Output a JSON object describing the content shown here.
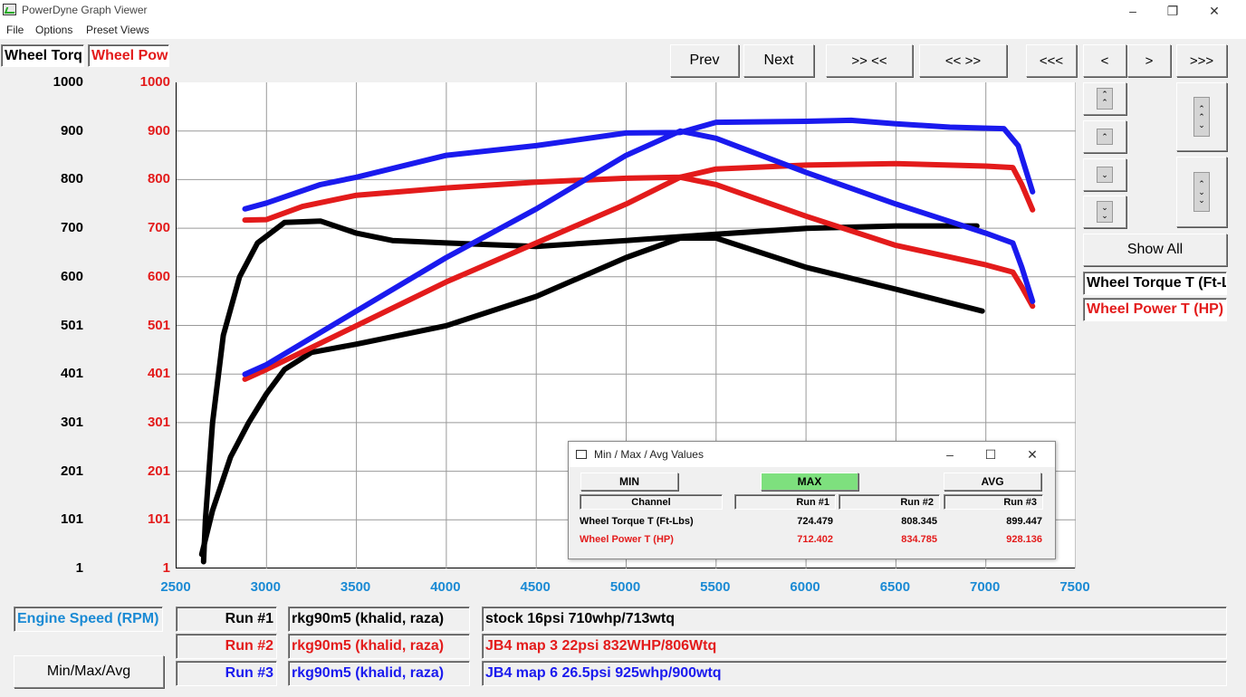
{
  "window": {
    "title": "PowerDyne Graph Viewer",
    "minimize": "–",
    "restore": "❐",
    "close": "✕"
  },
  "menu": [
    "File",
    "Options",
    "Preset Views"
  ],
  "channel_tabs": [
    {
      "label": "Wheel Torq",
      "color": "#000000"
    },
    {
      "label": "Wheel Pow",
      "color": "#e31b1b"
    }
  ],
  "toolbar": {
    "prev": "Prev",
    "next": "Next",
    "zoom_in": ">> <<",
    "zoom_out": "<< >>",
    "first": "<<<",
    "back": "<",
    "forward": ">",
    "last": ">>>"
  },
  "side": {
    "show_all": "Show All",
    "legend": [
      {
        "label": "Wheel Torque T (Ft-L",
        "color": "#000000"
      },
      {
        "label": "Wheel Power T (HP)",
        "color": "#e31b1b"
      }
    ]
  },
  "icons": {
    "up2": "double-up-icon",
    "up1": "up-icon",
    "down1": "down-icon",
    "down2": "double-down-icon"
  },
  "chart_data": {
    "type": "line",
    "xlim": [
      2500,
      7500
    ],
    "ylim": [
      1,
      1000
    ],
    "x_ticks": [
      "2500",
      "3000",
      "3500",
      "4000",
      "4500",
      "5000",
      "5500",
      "6000",
      "6500",
      "7000",
      "7500"
    ],
    "y_ticks_left": [
      "1000",
      "900",
      "800",
      "700",
      "600",
      "501",
      "401",
      "301",
      "201",
      "101",
      "1"
    ],
    "y_ticks_right": [
      "1000",
      "900",
      "800",
      "700",
      "600",
      "501",
      "401",
      "301",
      "201",
      "101",
      "1"
    ],
    "grid": true,
    "series": [
      {
        "color": "#000000",
        "points": [
          [
            2650,
            15
          ],
          [
            2660,
            100
          ],
          [
            2700,
            300
          ],
          [
            2760,
            480
          ],
          [
            2850,
            600
          ],
          [
            2950,
            670
          ],
          [
            3100,
            712
          ],
          [
            3300,
            715
          ],
          [
            3500,
            690
          ],
          [
            3700,
            675
          ],
          [
            4000,
            670
          ],
          [
            4500,
            663
          ],
          [
            5000,
            675
          ],
          [
            5500,
            688
          ],
          [
            6000,
            700
          ],
          [
            6500,
            705
          ],
          [
            6950,
            705
          ]
        ]
      },
      {
        "color": "#000000",
        "points": [
          [
            2640,
            30
          ],
          [
            2700,
            120
          ],
          [
            2800,
            230
          ],
          [
            2900,
            300
          ],
          [
            3000,
            360
          ],
          [
            3100,
            410
          ],
          [
            3250,
            445
          ],
          [
            3500,
            462
          ],
          [
            4000,
            500
          ],
          [
            4500,
            560
          ],
          [
            5000,
            640
          ],
          [
            5300,
            680
          ],
          [
            5500,
            680
          ],
          [
            6000,
            620
          ],
          [
            6500,
            575
          ],
          [
            6980,
            530
          ]
        ]
      },
      {
        "color": "#e31b1b",
        "points": [
          [
            2880,
            717
          ],
          [
            3000,
            718
          ],
          [
            3200,
            745
          ],
          [
            3500,
            768
          ],
          [
            4000,
            783
          ],
          [
            4500,
            795
          ],
          [
            5000,
            803
          ],
          [
            5300,
            805
          ],
          [
            5500,
            822
          ],
          [
            6000,
            830
          ],
          [
            6500,
            833
          ],
          [
            7000,
            828
          ],
          [
            7150,
            825
          ],
          [
            7200,
            790
          ],
          [
            7260,
            738
          ]
        ]
      },
      {
        "color": "#e31b1b",
        "points": [
          [
            2880,
            390
          ],
          [
            3000,
            410
          ],
          [
            3500,
            500
          ],
          [
            4000,
            590
          ],
          [
            4500,
            670
          ],
          [
            5000,
            750
          ],
          [
            5300,
            805
          ],
          [
            5500,
            790
          ],
          [
            6000,
            725
          ],
          [
            6500,
            665
          ],
          [
            7000,
            625
          ],
          [
            7150,
            610
          ],
          [
            7200,
            580
          ],
          [
            7260,
            540
          ]
        ]
      },
      {
        "color": "#1a1aee",
        "points": [
          [
            2880,
            740
          ],
          [
            3000,
            752
          ],
          [
            3300,
            790
          ],
          [
            3500,
            805
          ],
          [
            4000,
            850
          ],
          [
            4500,
            870
          ],
          [
            5000,
            896
          ],
          [
            5300,
            897
          ],
          [
            5500,
            918
          ],
          [
            6000,
            920
          ],
          [
            6250,
            922
          ],
          [
            6500,
            915
          ],
          [
            6800,
            908
          ],
          [
            7100,
            905
          ],
          [
            7180,
            870
          ],
          [
            7260,
            775
          ]
        ]
      },
      {
        "color": "#1a1aee",
        "points": [
          [
            2880,
            400
          ],
          [
            3000,
            420
          ],
          [
            3500,
            530
          ],
          [
            4000,
            640
          ],
          [
            4500,
            740
          ],
          [
            5000,
            850
          ],
          [
            5300,
            900
          ],
          [
            5500,
            885
          ],
          [
            6000,
            815
          ],
          [
            6500,
            750
          ],
          [
            7000,
            690
          ],
          [
            7150,
            670
          ],
          [
            7200,
            620
          ],
          [
            7260,
            550
          ]
        ]
      }
    ]
  },
  "popup": {
    "title": "Min / Max / Avg Values",
    "buttons": {
      "min": "MIN",
      "max": "MAX",
      "avg": "AVG"
    },
    "headers": [
      "Channel",
      "Run #1",
      "Run #2",
      "Run #3"
    ],
    "rows": [
      {
        "channel": "Wheel Torque T (Ft-Lbs)",
        "values": [
          "724.479",
          "808.345",
          "899.447"
        ],
        "color": "#000000"
      },
      {
        "channel": "Wheel Power T (HP)",
        "values": [
          "712.402",
          "834.785",
          "928.136"
        ],
        "color": "#e31b1b"
      }
    ]
  },
  "bottom": {
    "x_channel": "Engine Speed (RPM)",
    "minmax_button": "Min/Max/Avg",
    "runs": [
      {
        "run": "Run #1",
        "driver": "rkg90m5 (khalid, raza)",
        "desc": "stock 16psi 710whp/713wtq",
        "color": "#000000"
      },
      {
        "run": "Run #2",
        "driver": "rkg90m5 (khalid, raza)",
        "desc": "JB4 map 3 22psi 832WHP/806Wtq",
        "color": "#e31b1b"
      },
      {
        "run": "Run #3",
        "driver": "rkg90m5 (khalid, raza)",
        "desc": "JB4 map 6 26.5psi 925whp/900wtq",
        "color": "#1a1aee"
      }
    ]
  }
}
